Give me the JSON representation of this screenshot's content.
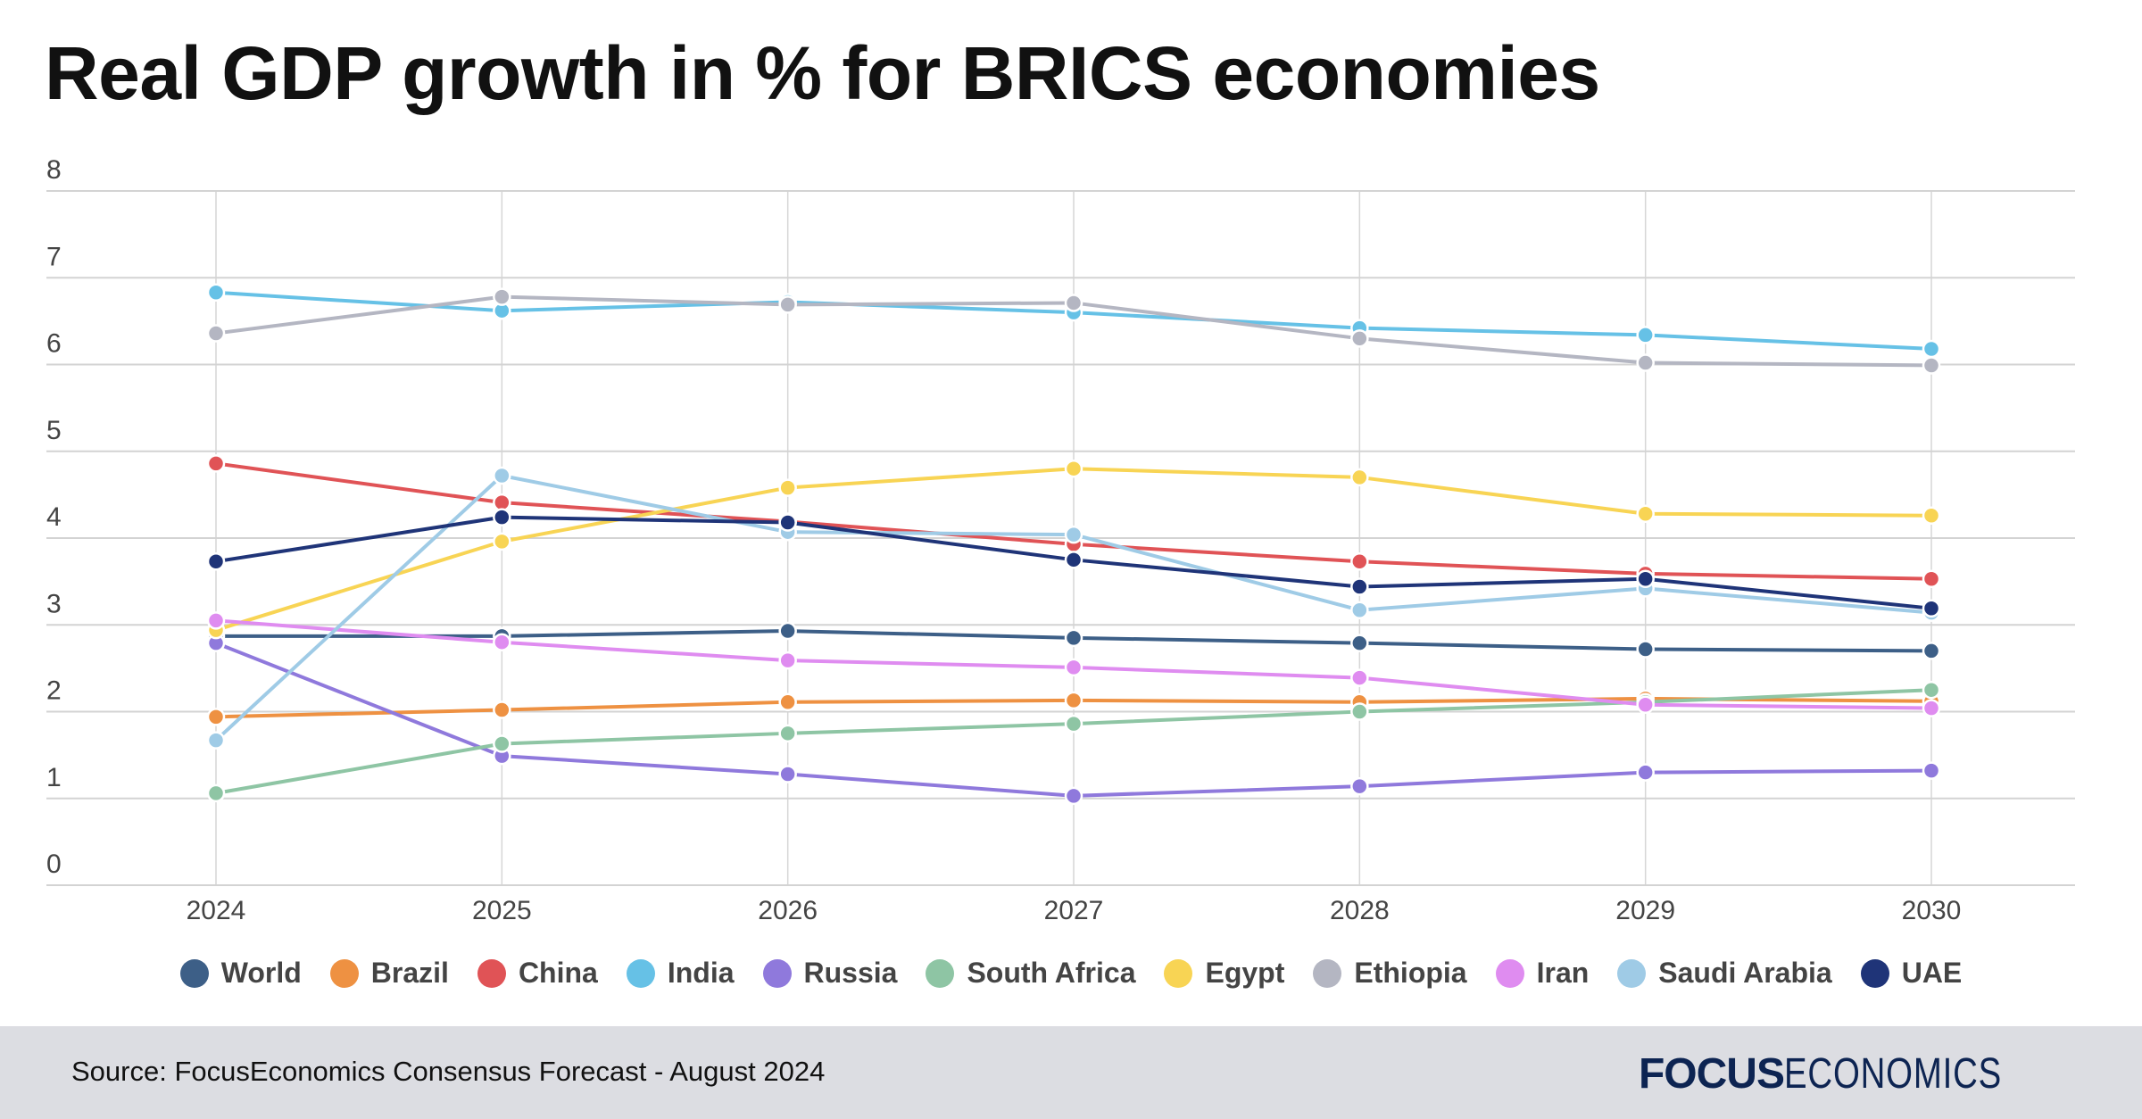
{
  "title": "Real GDP growth in % for BRICS economies",
  "source": "Source: FocusEconomics Consensus Forecast - August 2024",
  "logo": {
    "bold": "FOCUS",
    "light": "ECONOMICS"
  },
  "chart_data": {
    "type": "line",
    "title": "Real GDP growth in % for BRICS economies",
    "xlabel": "",
    "ylabel": "",
    "x": [
      "2024",
      "2025",
      "2026",
      "2027",
      "2028",
      "2029",
      "2030"
    ],
    "ylim": [
      0,
      8
    ],
    "yticks": [
      "0",
      "1",
      "2",
      "3",
      "4",
      "5",
      "6",
      "7",
      "8"
    ],
    "grid": true,
    "legend_position": "bottom",
    "series": [
      {
        "name": "World",
        "color": "#3d5f87",
        "values": [
          2.87,
          2.87,
          2.93,
          2.85,
          2.79,
          2.72,
          2.7
        ]
      },
      {
        "name": "Brazil",
        "color": "#ee9142",
        "values": [
          1.94,
          2.02,
          2.11,
          2.13,
          2.11,
          2.15,
          2.12
        ]
      },
      {
        "name": "China",
        "color": "#e05356",
        "values": [
          4.86,
          4.41,
          4.19,
          3.93,
          3.73,
          3.59,
          3.53
        ]
      },
      {
        "name": "India",
        "color": "#66c1e6",
        "values": [
          6.83,
          6.62,
          6.72,
          6.6,
          6.42,
          6.34,
          6.18
        ]
      },
      {
        "name": "Russia",
        "color": "#8f79dc",
        "values": [
          2.79,
          1.49,
          1.28,
          1.03,
          1.14,
          1.3,
          1.32
        ]
      },
      {
        "name": "South Africa",
        "color": "#8ec5a4",
        "values": [
          1.06,
          1.63,
          1.75,
          1.86,
          2.0,
          2.11,
          2.25
        ]
      },
      {
        "name": "Egypt",
        "color": "#f8d454",
        "values": [
          2.94,
          3.96,
          4.58,
          4.8,
          4.7,
          4.28,
          4.26
        ]
      },
      {
        "name": "Ethiopia",
        "color": "#b4b6c2",
        "values": [
          6.36,
          6.78,
          6.69,
          6.71,
          6.3,
          6.02,
          5.99
        ]
      },
      {
        "name": "Iran",
        "color": "#df8cf0",
        "values": [
          3.05,
          2.8,
          2.59,
          2.51,
          2.39,
          2.08,
          2.04
        ]
      },
      {
        "name": "Saudi Arabia",
        "color": "#9fcbe6",
        "values": [
          1.67,
          4.72,
          4.07,
          4.04,
          3.17,
          3.42,
          3.14
        ]
      },
      {
        "name": "UAE",
        "color": "#1f3478",
        "values": [
          3.73,
          4.24,
          4.18,
          3.75,
          3.44,
          3.53,
          3.19
        ]
      }
    ]
  }
}
